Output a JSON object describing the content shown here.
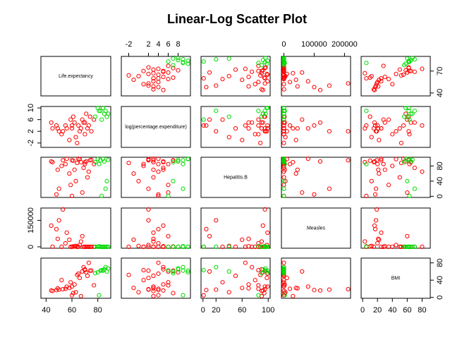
{
  "chart_data": {
    "type": "scatter-matrix",
    "title": "Linear-Log Scatter Plot",
    "variables": [
      {
        "label": "Life.expectancy",
        "lim": [
          36,
          90
        ],
        "xticks": [
          40,
          60,
          80
        ],
        "yticks": [
          40,
          70
        ]
      },
      {
        "label": "log(percentage.expenditure)",
        "lim": [
          -3.5,
          10.5
        ],
        "xticks": [
          -2,
          2,
          4,
          6,
          8
        ],
        "yticks": [
          -2,
          2,
          6,
          10
        ]
      },
      {
        "label": "Hepatitis.B",
        "lim": [
          -3,
          103
        ],
        "xticks": [
          0,
          20,
          60,
          100
        ],
        "yticks": [
          0,
          40,
          80
        ]
      },
      {
        "label": "Measles",
        "lim": [
          -8000,
          220000
        ],
        "xticks": [
          0,
          100000,
          200000
        ],
        "yticks": [
          0,
          150000
        ]
      },
      {
        "label": "BMI",
        "lim": [
          -2,
          91
        ],
        "xticks": [
          0,
          20,
          40,
          60,
          80
        ],
        "yticks": [
          0,
          40,
          80
        ]
      }
    ],
    "series": [
      {
        "color": "#ff0000",
        "values": [
          [
            45,
            3,
            90,
            500,
            15
          ],
          [
            50,
            2,
            20,
            150000,
            18
          ],
          [
            55,
            4,
            85,
            20000,
            20
          ],
          [
            60,
            3,
            95,
            0,
            25
          ],
          [
            62,
            5,
            70,
            3000,
            30
          ],
          [
            65,
            4,
            99,
            100,
            55
          ],
          [
            68,
            6,
            10,
            60000,
            60
          ],
          [
            70,
            5,
            90,
            0,
            65
          ],
          [
            72,
            3,
            50,
            200,
            50
          ],
          [
            74,
            7,
            95,
            0,
            62
          ],
          [
            58,
            -1,
            60,
            40000,
            22
          ],
          [
            48,
            4,
            5,
            100000,
            17
          ],
          [
            52,
            1,
            80,
            0,
            40
          ],
          [
            66,
            2,
            98,
            10000,
            45
          ],
          [
            71,
            8,
            92,
            0,
            58
          ],
          [
            63,
            0,
            40,
            5000,
            12
          ],
          [
            56,
            3,
            99,
            80000,
            25
          ],
          [
            69,
            5,
            75,
            0,
            70
          ],
          [
            77,
            6,
            85,
            0,
            28
          ],
          [
            53,
            2,
            95,
            212000,
            19
          ],
          [
            60,
            4,
            1,
            0,
            5
          ],
          [
            67,
            3,
            90,
            30000,
            3
          ],
          [
            73,
            4,
            65,
            0,
            80
          ],
          [
            44,
            5,
            92,
            120000,
            16
          ],
          [
            59,
            6,
            30,
            0,
            35
          ],
          [
            75,
            2,
            96,
            0,
            62
          ],
          [
            64,
            -2,
            88,
            0,
            52
          ],
          [
            49,
            3,
            70,
            45000,
            21
          ],
          [
            61,
            7,
            94,
            2000,
            10
          ],
          [
            70,
            1,
            85,
            0,
            63
          ]
        ]
      },
      {
        "color": "#00dd00",
        "values": [
          [
            82,
            9,
            95,
            0,
            62
          ],
          [
            85,
            8,
            92,
            10,
            65
          ],
          [
            80,
            10,
            98,
            50,
            58
          ],
          [
            87,
            7,
            40,
            0,
            60
          ],
          [
            83,
            6,
            1,
            100,
            63
          ],
          [
            88,
            8,
            96,
            0,
            67
          ],
          [
            81,
            9,
            85,
            3000,
            5
          ],
          [
            84,
            10,
            99,
            0,
            62
          ],
          [
            78,
            7,
            90,
            0,
            56
          ],
          [
            86,
            9,
            20,
            0,
            70
          ]
        ]
      }
    ]
  }
}
